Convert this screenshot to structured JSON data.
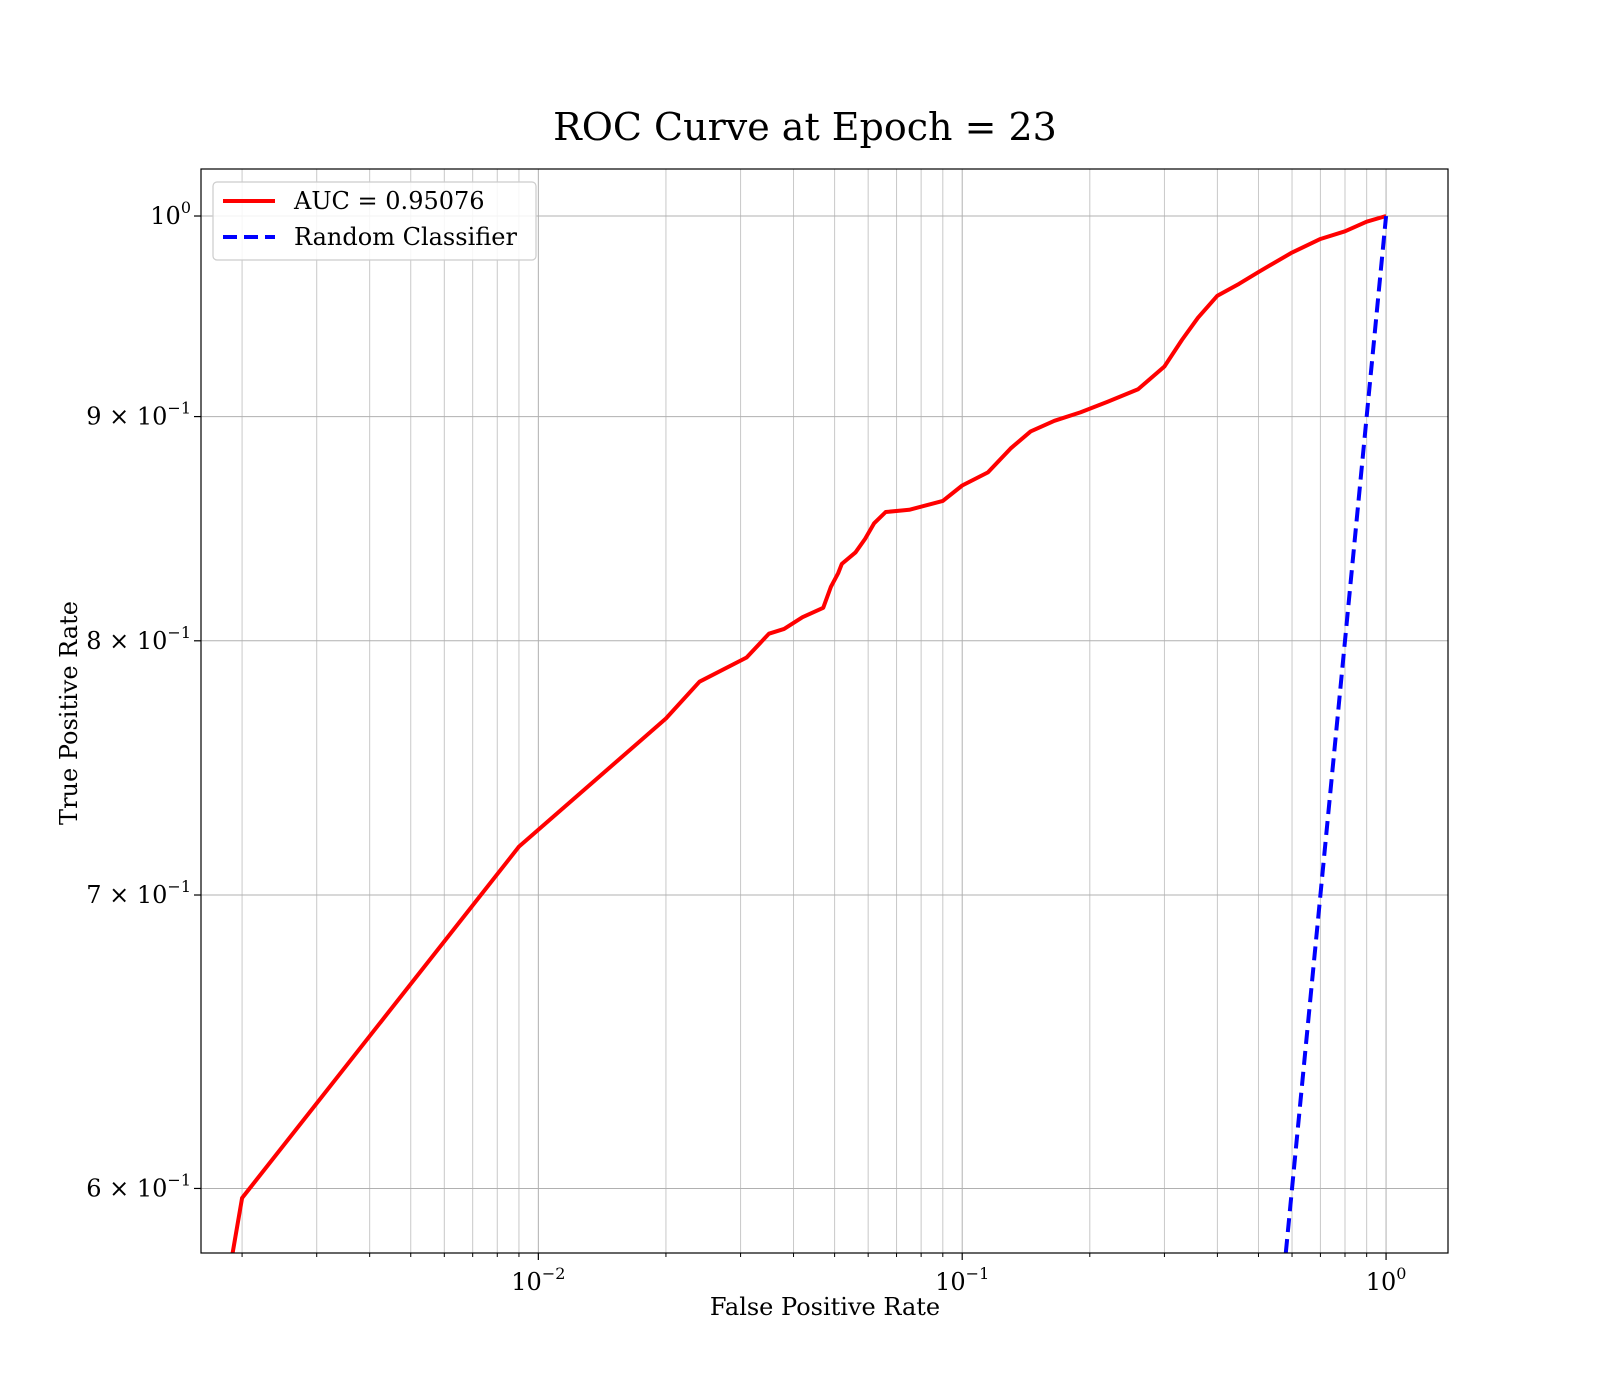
{
  "chart_data": {
    "type": "line",
    "title": "ROC Curve at Epoch = 23",
    "xlabel": "False Positive Rate",
    "ylabel": "True Positive Rate",
    "xscale": "log",
    "yscale": "log",
    "xlim": [
      0.0016,
      1.4
    ],
    "ylim": [
      0.58,
      1.025
    ],
    "grid": "both",
    "legend_placement": "upper-left",
    "x_ticks": [
      {
        "value": 0.01,
        "base": "10",
        "exp": "−2"
      },
      {
        "value": 0.1,
        "base": "10",
        "exp": "−1"
      },
      {
        "value": 1,
        "base": "10",
        "exp": "0"
      }
    ],
    "y_ticks": [
      {
        "value": 0.6,
        "base": "6 × 10",
        "exp": "−1"
      },
      {
        "value": 0.7,
        "base": "7 × 10",
        "exp": "−1"
      },
      {
        "value": 0.8,
        "base": "8 × 10",
        "exp": "−1"
      },
      {
        "value": 0.9,
        "base": "9 × 10",
        "exp": "−1"
      },
      {
        "value": 1.0,
        "base": "10",
        "exp": "0"
      }
    ],
    "series": [
      {
        "name": "AUC = 0.95076",
        "color": "#ff0000",
        "style": "solid",
        "x": [
          0.0019,
          0.002,
          0.009,
          0.02,
          0.024,
          0.031,
          0.035,
          0.038,
          0.042,
          0.047,
          0.049,
          0.051,
          0.052,
          0.056,
          0.059,
          0.062,
          0.066,
          0.075,
          0.09,
          0.1,
          0.115,
          0.13,
          0.145,
          0.165,
          0.19,
          0.22,
          0.26,
          0.3,
          0.33,
          0.36,
          0.4,
          0.45,
          0.5,
          0.6,
          0.7,
          0.8,
          0.9,
          1.0
        ],
        "y": [
          0.58,
          0.597,
          0.718,
          0.768,
          0.783,
          0.793,
          0.803,
          0.805,
          0.81,
          0.814,
          0.823,
          0.829,
          0.833,
          0.838,
          0.844,
          0.851,
          0.856,
          0.857,
          0.861,
          0.868,
          0.874,
          0.885,
          0.893,
          0.898,
          0.902,
          0.907,
          0.913,
          0.924,
          0.937,
          0.948,
          0.959,
          0.965,
          0.971,
          0.981,
          0.988,
          0.992,
          0.997,
          1.0
        ]
      },
      {
        "name": "Random Classifier",
        "color": "#0000ff",
        "style": "dashed",
        "x": [
          0.58,
          1.0
        ],
        "y": [
          0.58,
          1.0
        ]
      }
    ]
  }
}
